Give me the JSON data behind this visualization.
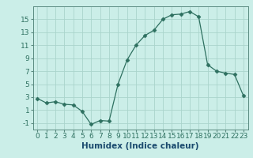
{
  "xlabel": "Humidex (Indice chaleur)",
  "x_values": [
    0,
    1,
    2,
    3,
    4,
    5,
    6,
    7,
    8,
    9,
    10,
    11,
    12,
    13,
    14,
    15,
    16,
    17,
    18,
    19,
    20,
    21,
    22,
    23
  ],
  "y_values": [
    2.8,
    2.1,
    2.3,
    1.9,
    1.8,
    0.8,
    -1.2,
    -0.6,
    -0.7,
    5.0,
    8.7,
    11.0,
    12.5,
    13.3,
    15.0,
    15.7,
    15.8,
    16.2,
    15.4,
    8.0,
    7.0,
    6.7,
    6.5,
    3.2
  ],
  "line_color": "#2e7060",
  "marker": "D",
  "marker_size": 2.5,
  "bg_color": "#cbeee8",
  "grid_color": "#aad4cc",
  "ylim": [
    -2,
    17
  ],
  "yticks": [
    -1,
    1,
    3,
    5,
    7,
    9,
    11,
    13,
    15
  ],
  "xlim": [
    -0.5,
    23.5
  ],
  "tick_fontsize": 6.5,
  "label_fontsize": 7.5,
  "label_color": "#1a4a6e"
}
